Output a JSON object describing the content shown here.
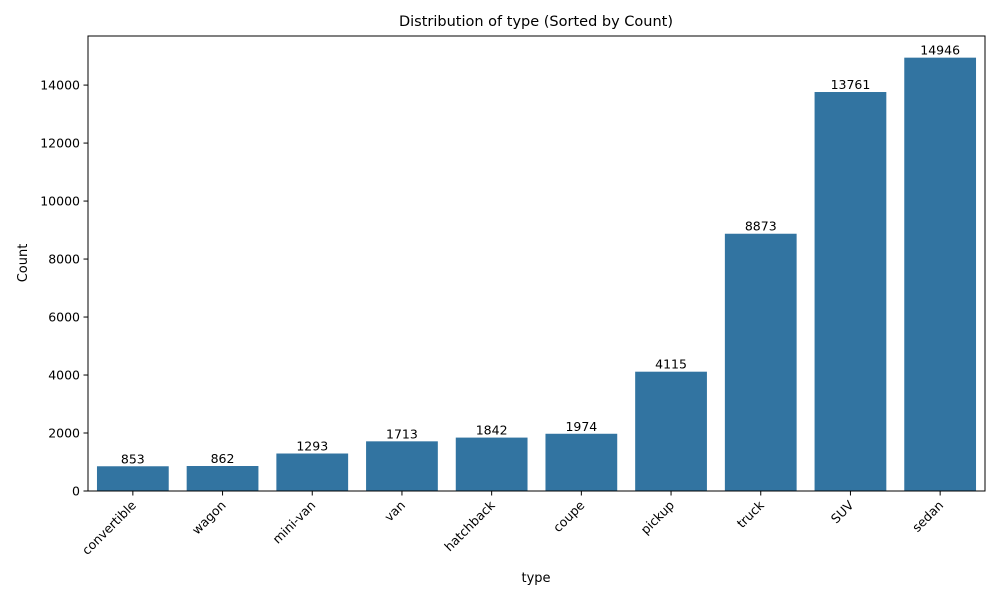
{
  "chart_data": {
    "type": "bar",
    "title": "Distribution of type (Sorted by Count)",
    "xlabel": "type",
    "ylabel": "Count",
    "categories": [
      "convertible",
      "wagon",
      "mini-van",
      "van",
      "hatchback",
      "coupe",
      "pickup",
      "truck",
      "SUV",
      "sedan"
    ],
    "values": [
      853,
      862,
      1293,
      1713,
      1842,
      1974,
      4115,
      8873,
      13761,
      14946
    ],
    "ylim": [
      0,
      15693
    ],
    "yticks": [
      0,
      2000,
      4000,
      6000,
      8000,
      10000,
      12000,
      14000
    ],
    "grid": false,
    "legend": "none",
    "bar_color": "#3274a1"
  }
}
